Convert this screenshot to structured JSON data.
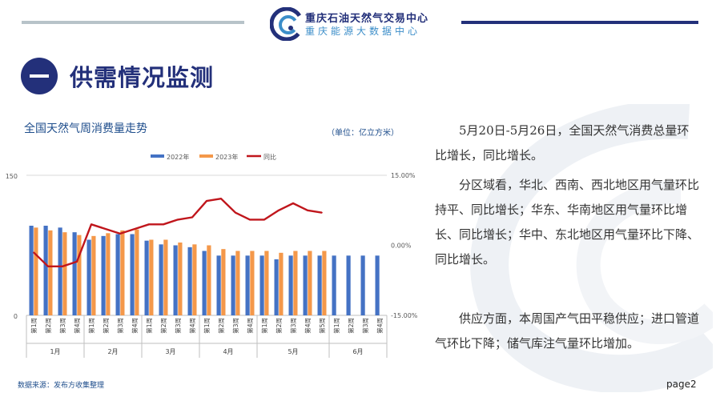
{
  "header": {
    "org_name": "重庆石油天然气交易中心",
    "org_subname": "重庆能源大数据中心"
  },
  "section": {
    "number": "一",
    "title": "供需情况监测"
  },
  "chart": {
    "title": "全国天然气周消费量走势",
    "unit": "（单位：亿立方米）",
    "source": "数据来源：发布方收集整理"
  },
  "chart_data": {
    "type": "bar",
    "series_types": {
      "2022年": "bar",
      "2023年": "bar",
      "同比": "line"
    },
    "categories": [
      "第1周",
      "第2周",
      "第3周",
      "第4周",
      "第1周",
      "第2周",
      "第3周",
      "第4周",
      "第1周",
      "第2周",
      "第3周",
      "第4周",
      "第1周",
      "第2周",
      "第3周",
      "第4周",
      "第1周",
      "第2周",
      "第3周",
      "第4周",
      "第5周",
      "第1周",
      "第2周",
      "第3周",
      "第4周"
    ],
    "groups": [
      {
        "label": "1月",
        "count": 4
      },
      {
        "label": "2月",
        "count": 4
      },
      {
        "label": "3月",
        "count": 4
      },
      {
        "label": "4月",
        "count": 4
      },
      {
        "label": "5月",
        "count": 5
      },
      {
        "label": "6月",
        "count": 4
      }
    ],
    "series": [
      {
        "name": "2022年",
        "color": "#4472c4",
        "values": [
          96,
          96,
          94,
          89,
          81,
          85,
          87,
          87,
          80,
          76,
          75,
          73,
          69,
          64,
          64,
          64,
          64,
          60,
          64,
          64,
          64,
          64,
          64,
          64,
          64
        ]
      },
      {
        "name": "2023年",
        "color": "#f4984a",
        "values": [
          94,
          91,
          89,
          86,
          85,
          88,
          91,
          92,
          81,
          81,
          78,
          76,
          75,
          71,
          69,
          69,
          69,
          67,
          69,
          69,
          69,
          null,
          null,
          null,
          null
        ]
      },
      {
        "name": "同比",
        "color": "#c0161c",
        "values": [
          -1.5,
          -4.5,
          -4.5,
          -3.5,
          4.5,
          3.5,
          2.5,
          3.5,
          4.5,
          4.5,
          5.5,
          6.0,
          9.5,
          10.0,
          7.0,
          5.5,
          5.5,
          7.5,
          9.0,
          7.5,
          7.0,
          null,
          null,
          null,
          null
        ]
      }
    ],
    "ylim_left": [
      0,
      150
    ],
    "yticks_left": [
      "0",
      "150"
    ],
    "ylim_right": [
      -15,
      15
    ],
    "yticks_right": [
      "-15.00%",
      "0.00%",
      "15.00%"
    ],
    "legend_position": "top",
    "grid": false
  },
  "paragraphs": [
    "5月20日-5月26日，全国天然气消费总量环比增长，同比增长。",
    "分区域看，华北、西南、西北地区用气量环比持平、同比增长；华东、华南地区用气量环比增长、同比增长；华中、东北地区用气量环比下降、同比增长。",
    "供应方面，本周国产气田平稳供应；进口管道气环比下降；储气库注气量环比增加。"
  ],
  "page_label": "page2"
}
